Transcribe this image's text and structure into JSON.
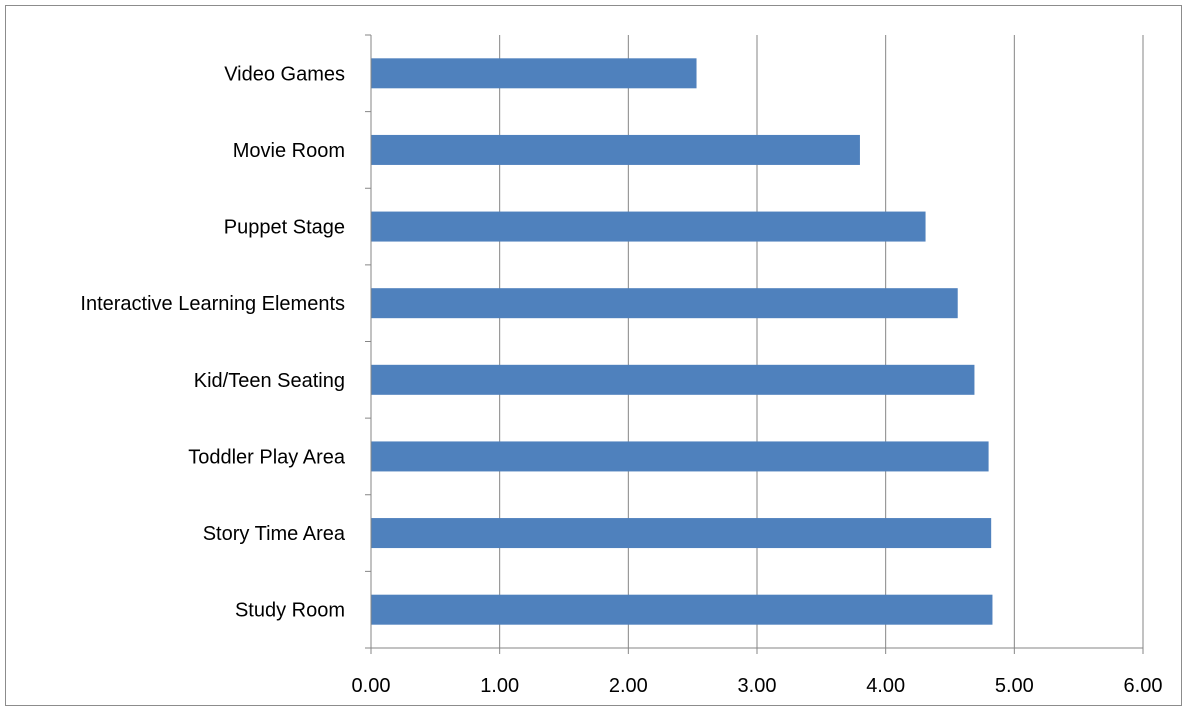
{
  "chart_data": {
    "type": "bar",
    "orientation": "horizontal",
    "categories": [
      "Video Games",
      "Movie Room",
      "Puppet Stage",
      "Interactive Learning Elements",
      "Kid/Teen Seating",
      "Toddler Play Area",
      "Story Time Area",
      "Study Room"
    ],
    "values": [
      2.53,
      3.8,
      4.31,
      4.56,
      4.69,
      4.8,
      4.82,
      4.83
    ],
    "xlim": [
      0,
      6
    ],
    "x_ticks": [
      "0.00",
      "1.00",
      "2.00",
      "3.00",
      "4.00",
      "5.00",
      "6.00"
    ],
    "grid": "vertical",
    "bar_color": "#4f81bd",
    "grid_color": "#868686",
    "axis_color": "#868686"
  }
}
